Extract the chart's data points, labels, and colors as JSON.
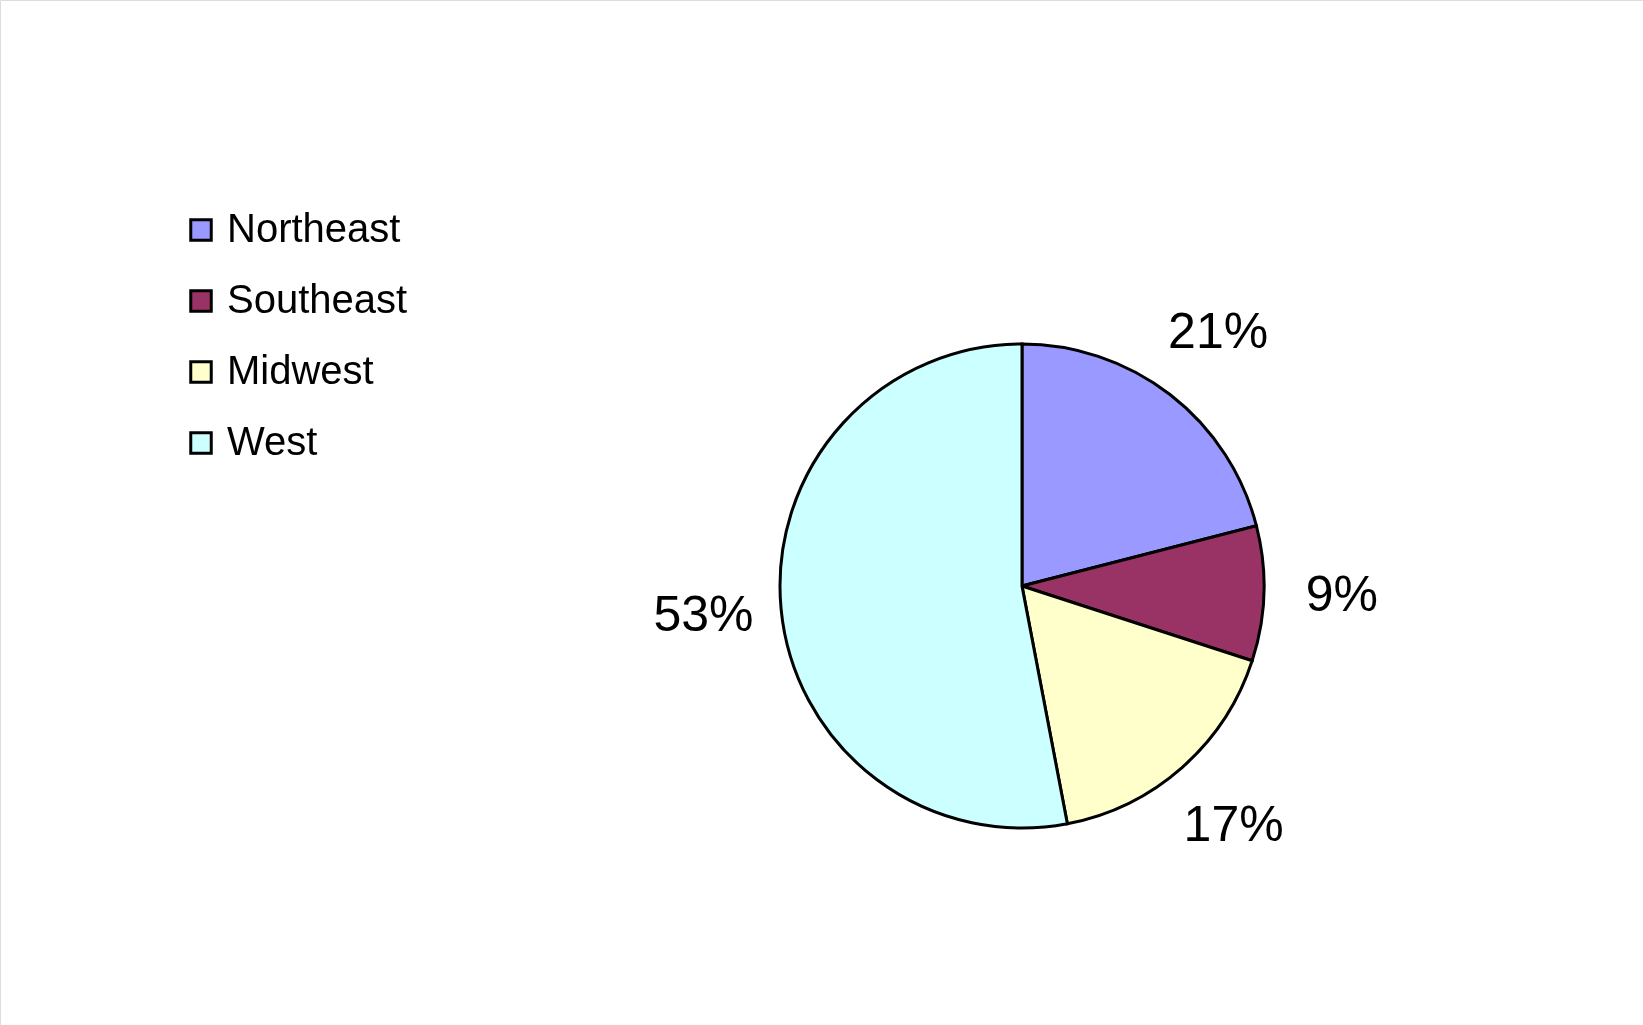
{
  "chart_data": {
    "type": "pie",
    "categories": [
      "Northeast",
      "Southeast",
      "Midwest",
      "West"
    ],
    "values": [
      21,
      9,
      17,
      53
    ],
    "colors": [
      "#9999ff",
      "#993366",
      "#ffffcc",
      "#ccffff"
    ],
    "value_labels": [
      "21%",
      "9%",
      "17%",
      "53%"
    ],
    "legend": "top left"
  }
}
